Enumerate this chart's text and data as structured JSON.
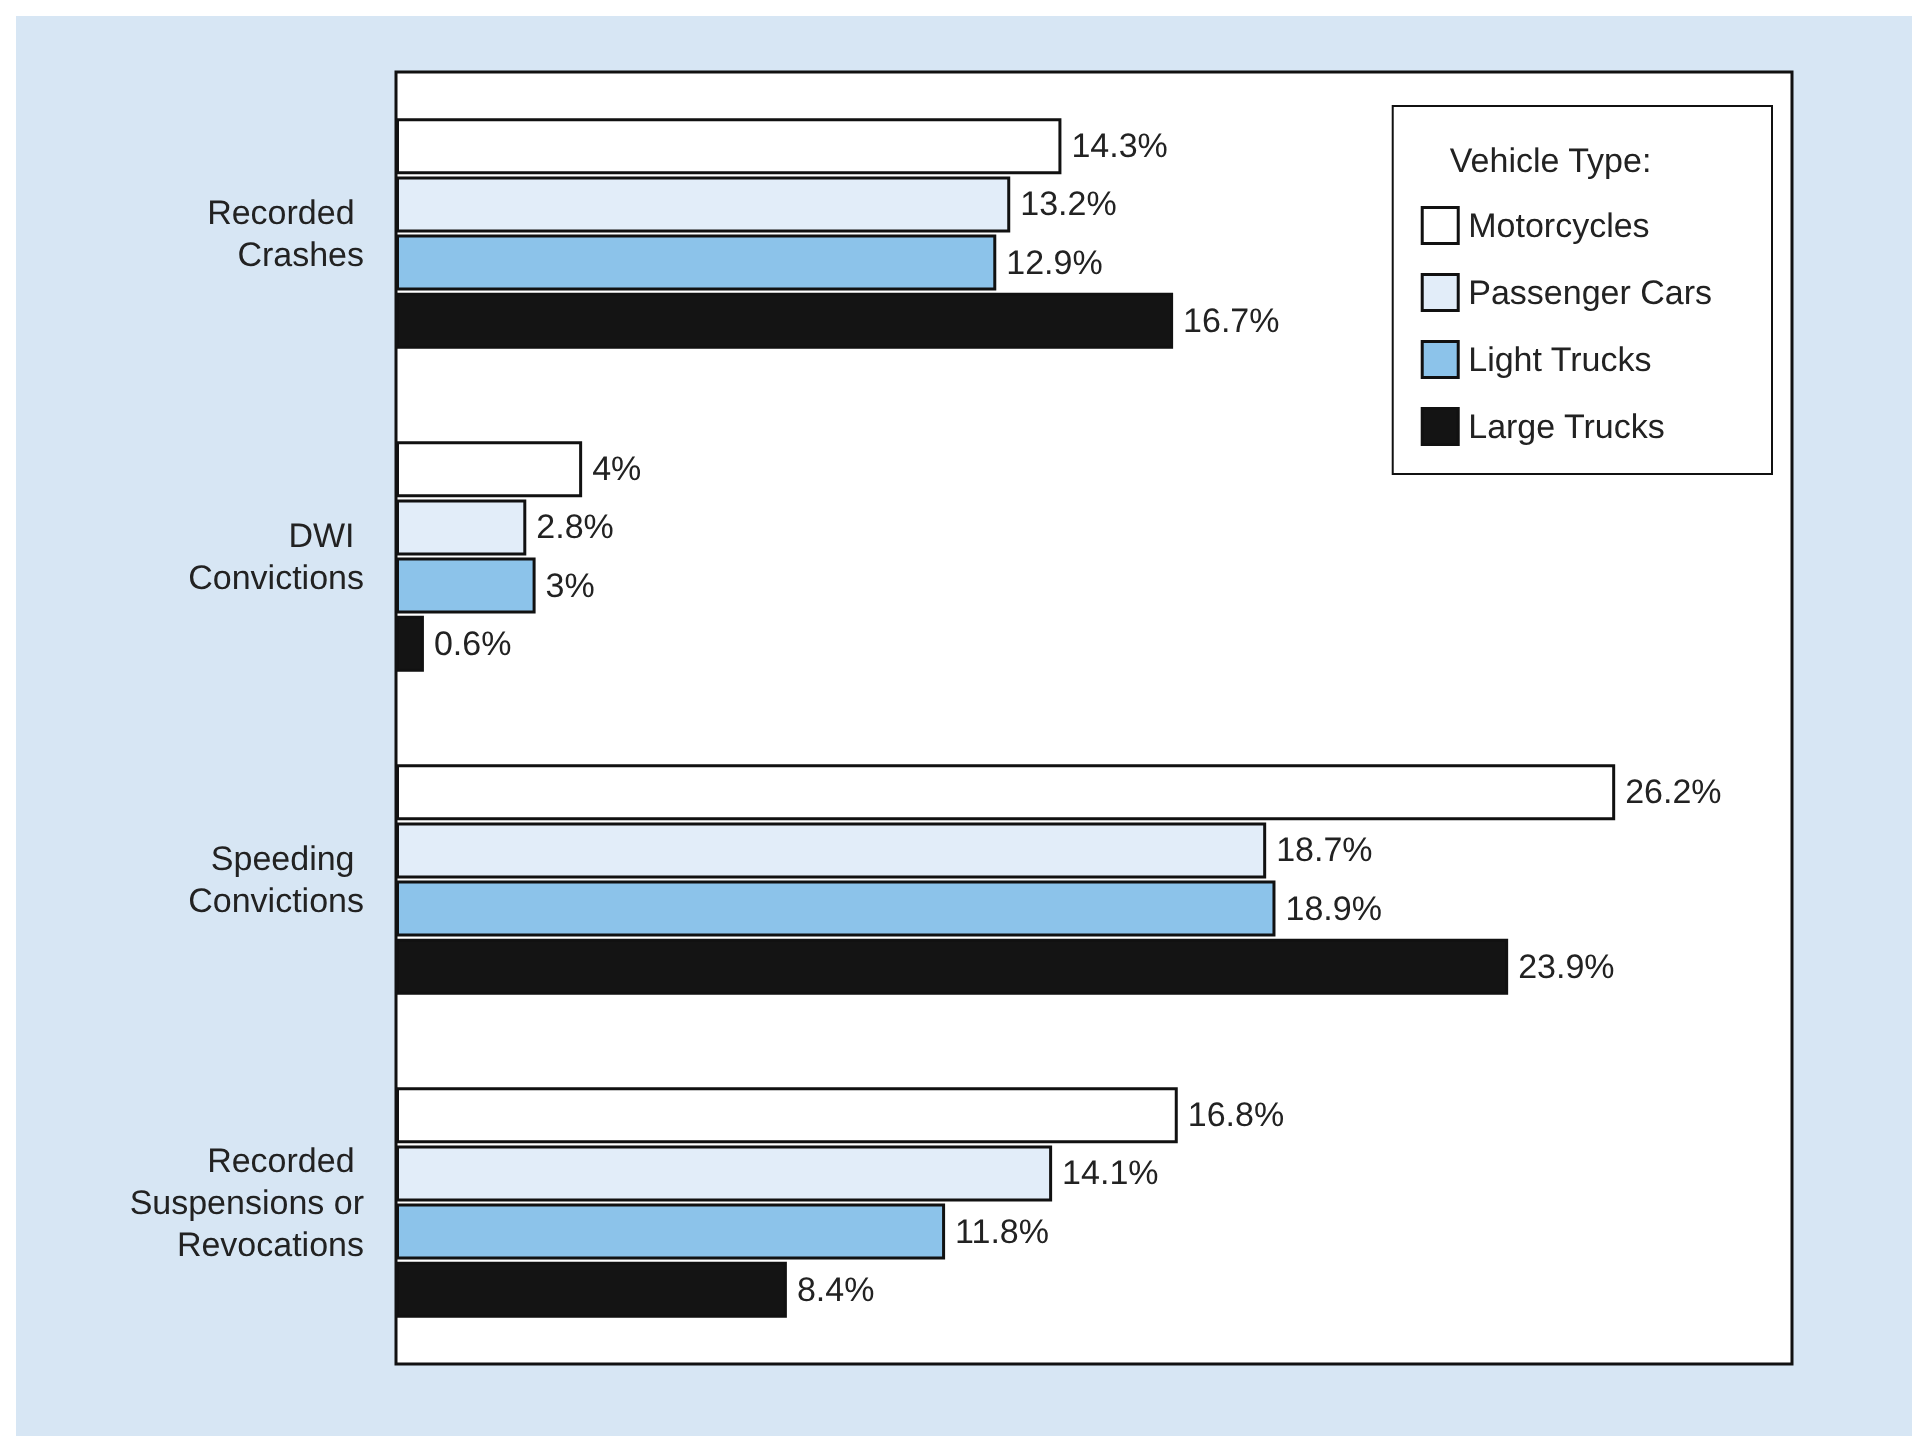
{
  "chart_data": {
    "type": "bar",
    "orientation": "horizontal",
    "categories": [
      "Recorded Crashes",
      "DWI Convictions",
      "Speeding Convictions",
      "Recorded Suspensions or Revocations"
    ],
    "legend_title": "Vehicle Type:",
    "legend": "top right",
    "series": [
      {
        "name": "Motorcycles",
        "color": "#ffffff",
        "values": [
          14.3,
          4,
          26.2,
          16.8
        ],
        "value_labels": [
          "14.3%",
          "4%",
          "26.2%",
          "16.8%"
        ]
      },
      {
        "name": "Passenger Cars",
        "color": "#e2edf9",
        "values": [
          13.2,
          2.8,
          18.7,
          14.1
        ],
        "value_labels": [
          "13.2%",
          "2.8%",
          "18.7%",
          "14.1%"
        ]
      },
      {
        "name": "Light Trucks",
        "color": "#8cc3ea",
        "values": [
          12.9,
          3,
          18.9,
          11.8
        ],
        "value_labels": [
          "12.9%",
          "3%",
          "18.9%",
          "11.8%"
        ]
      },
      {
        "name": "Large Trucks",
        "color": "#141414",
        "values": [
          16.7,
          0.6,
          23.9,
          8.4
        ],
        "value_labels": [
          "16.7%",
          "0.6%",
          "23.9%",
          "8.4%"
        ]
      }
    ]
  }
}
